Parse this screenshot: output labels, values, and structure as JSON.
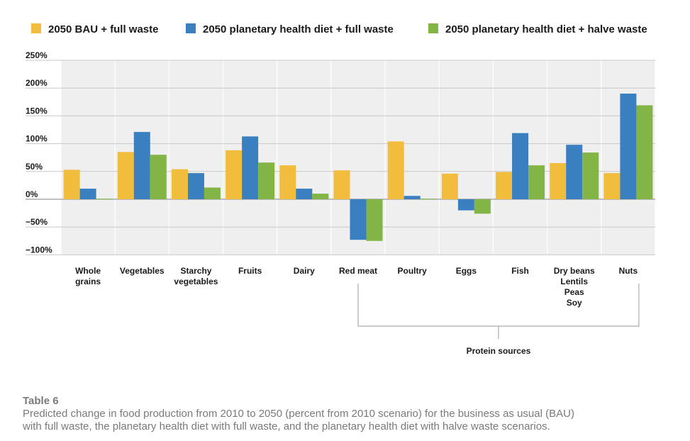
{
  "chart_data": {
    "type": "bar",
    "categories": [
      [
        "Whole",
        "grains"
      ],
      [
        "Vegetables"
      ],
      [
        "Starchy",
        "vegetables"
      ],
      [
        "Fruits"
      ],
      [
        "Dairy"
      ],
      [
        "Red meat"
      ],
      [
        "Poultry"
      ],
      [
        "Eggs"
      ],
      [
        "Fish"
      ],
      [
        "Dry beans",
        "Lentils",
        "Peas",
        "Soy"
      ],
      [
        "Nuts"
      ]
    ],
    "series": [
      {
        "name": "2050 BAU + full waste",
        "color": "#f2bd3c",
        "values": [
          53,
          85,
          54,
          88,
          61,
          52,
          104,
          46,
          49,
          65,
          47
        ]
      },
      {
        "name": "2050 planetary health diet + full waste",
        "color": "#3a7fbf",
        "values": [
          19,
          121,
          47,
          113,
          19,
          -73,
          6,
          -20,
          119,
          98,
          190
        ]
      },
      {
        "name": "2050 planetary health diet + halve waste",
        "color": "#82b446",
        "values": [
          1,
          80,
          21,
          66,
          10,
          -75,
          1,
          -26,
          61,
          84,
          169
        ]
      }
    ],
    "y_ticks": [
      "250%",
      "200%",
      "150%",
      "100%",
      "50%",
      "0%",
      "-50%",
      "-100%"
    ],
    "ylim": [
      -100,
      250
    ],
    "bracket_label": "Protein sources",
    "legend_position": "top",
    "grid": true
  },
  "caption": {
    "title": "Table 6",
    "lines": [
      "Predicted change in food production from 2010 to 2050 (percent from 2010 scenario) for the business as usual (BAU)",
      "with full waste, the planetary health diet with full waste, and the planetary health diet with halve waste scenarios."
    ]
  }
}
